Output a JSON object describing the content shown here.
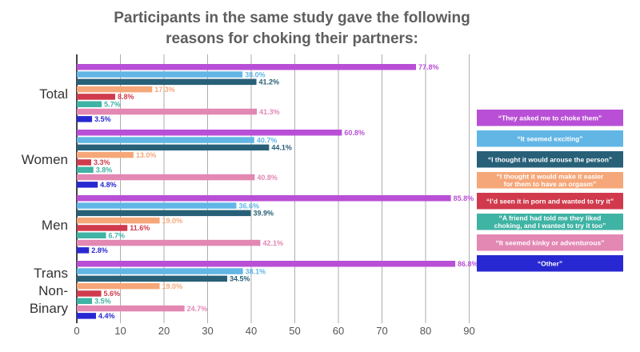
{
  "chart_data": {
    "type": "bar",
    "orientation": "horizontal",
    "title": "Participants in the same study gave the following reasons for choking their partners:",
    "title_lines": [
      "Participants in the same study gave the following",
      "reasons for choking their partners:"
    ],
    "categories": [
      "Total",
      "Women",
      "Men",
      "Trans Non-Binary"
    ],
    "category_label_lines": [
      [
        "Total"
      ],
      [
        "Women"
      ],
      [
        "Men"
      ],
      [
        "Trans",
        "Non-",
        "Binary"
      ]
    ],
    "xlim": [
      0,
      90
    ],
    "xticks": [
      "0",
      "10",
      "20",
      "30",
      "40",
      "50",
      "60",
      "70",
      "80",
      "90"
    ],
    "grid": true,
    "legend_position": "right",
    "series": [
      {
        "name": "“They asked me to choke them”",
        "name_lines": [
          "“They asked me to choke them”"
        ],
        "color": "#b84fd6",
        "values": [
          77.8,
          60.8,
          85.8,
          86.8
        ],
        "labels": [
          "77.8%",
          "60.8%",
          "85.8%",
          "86.8%"
        ]
      },
      {
        "name": "“It seemed exciting”",
        "name_lines": [
          "“It seemed exciting”"
        ],
        "color": "#62b6e6",
        "values": [
          38.0,
          40.7,
          36.6,
          38.1
        ],
        "labels": [
          "38.0%",
          "40.7%",
          "36.6%",
          "38.1%"
        ]
      },
      {
        "name": "“I thought it would arouse the person”",
        "name_lines": [
          "“I thought it would arouse the person”"
        ],
        "color": "#286078",
        "values": [
          41.2,
          44.1,
          39.9,
          34.5
        ],
        "labels": [
          "41.2%",
          "44.1%",
          "39.9%",
          "34.5%"
        ]
      },
      {
        "name": "“I thought it would make it easier for them to have an orgasm”",
        "name_lines": [
          "“I thought it would make it easier",
          "for them to have an orgasm”"
        ],
        "color": "#f5a779",
        "values": [
          17.3,
          13.0,
          19.0,
          19.0
        ],
        "labels": [
          "17.3%",
          "13.0%",
          "19.0%",
          "19.0%"
        ]
      },
      {
        "name": "“I’d seen it in porn and wanted to try it”",
        "name_lines": [
          "“I’d seen it in porn and wanted to try it”"
        ],
        "color": "#d03a4c",
        "values": [
          8.8,
          3.3,
          11.6,
          5.6
        ],
        "labels": [
          "8.8%",
          "3.3%",
          "11.6%",
          "5.6%"
        ]
      },
      {
        "name": "“A friend had told me they liked choking, and I wanted to try it too”",
        "name_lines": [
          "“A friend had told me they liked",
          "choking, and I wanted to try it too”"
        ],
        "color": "#3fb3a4",
        "values": [
          5.7,
          3.8,
          6.7,
          3.5
        ],
        "labels": [
          "5.7%",
          "3.8%",
          "6.7%",
          "3.5%"
        ]
      },
      {
        "name": "“It seemed kinky or adventurous”",
        "name_lines": [
          "“It seemed kinky or adventurous”"
        ],
        "color": "#e387b3",
        "values": [
          41.3,
          40.8,
          42.1,
          24.7
        ],
        "labels": [
          "41.3%",
          "40.8%",
          "42.1%",
          "24.7%"
        ]
      },
      {
        "name": "“Other”",
        "name_lines": [
          "“Other”"
        ],
        "color": "#2828d2",
        "values": [
          3.5,
          4.8,
          2.8,
          4.4
        ],
        "labels": [
          "3.5%",
          "4.8%",
          "2.8%",
          "4.4%"
        ]
      }
    ]
  }
}
